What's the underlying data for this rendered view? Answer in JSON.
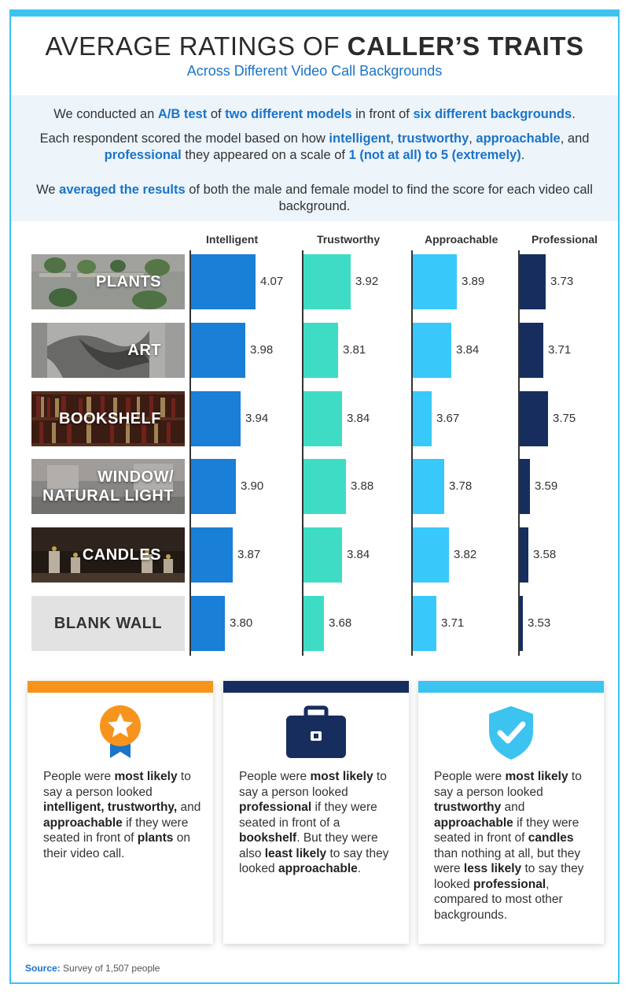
{
  "title": {
    "prefix": "AVERAGE RATINGS OF",
    "bold": "CALLER’S TRAITS"
  },
  "subtitle": "Across Different Video Call Backgrounds",
  "intro": {
    "p1": [
      {
        "t": "We conducted an ",
        "b": false
      },
      {
        "t": "A/B test",
        "b": true
      },
      {
        "t": " of ",
        "b": false
      },
      {
        "t": "two different models",
        "b": true
      },
      {
        "t": " in front of ",
        "b": false
      },
      {
        "t": "six different backgrounds",
        "b": true
      },
      {
        "t": ".",
        "b": false
      }
    ],
    "p2": [
      {
        "t": "Each respondent scored the model based on how ",
        "b": false
      },
      {
        "t": "intelligent",
        "b": true
      },
      {
        "t": ", ",
        "b": false
      },
      {
        "t": "trustworthy",
        "b": true
      },
      {
        "t": ", ",
        "b": false
      },
      {
        "t": "approachable",
        "b": true
      },
      {
        "t": ", and ",
        "b": false
      },
      {
        "t": "professional",
        "b": true
      },
      {
        "t": " they appeared on a scale of ",
        "b": false
      },
      {
        "t": "1 (not at all) to 5 (extremely)",
        "b": true
      },
      {
        "t": ".",
        "b": false
      }
    ],
    "p3": [
      {
        "t": "We ",
        "b": false
      },
      {
        "t": "averaged the results",
        "b": true
      },
      {
        "t": " of both the male and female model to find the score for each video call background.",
        "b": false
      }
    ]
  },
  "colors": {
    "frame": "#3cc3f0",
    "intelligent": "#1a7fd6",
    "trustworthy": "#3fdcc5",
    "approachable": "#38c9fa",
    "professional": "#162d5e",
    "card1": "#f7941d",
    "card2": "#162d5e",
    "card3": "#3cc3f0",
    "accent": "#1a74c9"
  },
  "chart_data": {
    "type": "bar",
    "orientation": "horizontal",
    "title": "AVERAGE RATINGS OF CALLER’S TRAITS",
    "subtitle": "Across Different Video Call Backgrounds",
    "categories": [
      "PLANTS",
      "ART",
      "BOOKSHELF",
      "WINDOW/ NATURAL LIGHT",
      "CANDLES",
      "BLANK WALL"
    ],
    "series": [
      {
        "name": "Intelligent",
        "values": [
          4.07,
          3.98,
          3.94,
          3.9,
          3.87,
          3.8
        ]
      },
      {
        "name": "Trustworthy",
        "values": [
          3.92,
          3.81,
          3.84,
          3.88,
          3.84,
          3.68
        ]
      },
      {
        "name": "Approachable",
        "values": [
          3.89,
          3.84,
          3.67,
          3.78,
          3.82,
          3.71
        ]
      },
      {
        "name": "Professional",
        "values": [
          3.73,
          3.71,
          3.75,
          3.59,
          3.58,
          3.53
        ]
      }
    ],
    "value_axis_min": 3.5,
    "scale": "1 (not at all) to 5 (extremely)",
    "data_labels": true
  },
  "rows": [
    {
      "label": "PLANTS",
      "lines": [
        "PLANTS"
      ]
    },
    {
      "label": "ART",
      "lines": [
        "ART"
      ]
    },
    {
      "label": "BOOKSHELF",
      "lines": [
        "BOOKSHELF"
      ]
    },
    {
      "label": "WINDOW/ NATURAL LIGHT",
      "lines": [
        "WINDOW/",
        "NATURAL LIGHT"
      ]
    },
    {
      "label": "CANDLES",
      "lines": [
        "CANDLES"
      ]
    },
    {
      "label": "BLANK WALL",
      "lines": [
        "BLANK WALL"
      ]
    }
  ],
  "cards": [
    {
      "icon": "award-ribbon-icon",
      "parts": [
        {
          "t": "People were ",
          "b": false
        },
        {
          "t": "most likely",
          "b": true
        },
        {
          "t": " to say a person looked ",
          "b": false
        },
        {
          "t": "intelligent, trustworthy,",
          "b": true
        },
        {
          "t": " and ",
          "b": false
        },
        {
          "t": "approachable",
          "b": true
        },
        {
          "t": " if they were seated in front of ",
          "b": false
        },
        {
          "t": "plants",
          "b": true
        },
        {
          "t": " on their video call.",
          "b": false
        }
      ]
    },
    {
      "icon": "briefcase-icon",
      "parts": [
        {
          "t": "People were ",
          "b": false
        },
        {
          "t": "most likely",
          "b": true
        },
        {
          "t": " to say a person looked ",
          "b": false
        },
        {
          "t": "professional",
          "b": true
        },
        {
          "t": " if they were seated in front of a ",
          "b": false
        },
        {
          "t": "bookshelf",
          "b": true
        },
        {
          "t": ". But they were also ",
          "b": false
        },
        {
          "t": "least likely",
          "b": true
        },
        {
          "t": " to say they looked ",
          "b": false
        },
        {
          "t": "approachable",
          "b": true
        },
        {
          "t": ".",
          "b": false
        }
      ]
    },
    {
      "icon": "shield-check-icon",
      "parts": [
        {
          "t": "People were ",
          "b": false
        },
        {
          "t": "most likely",
          "b": true
        },
        {
          "t": " to say a person looked ",
          "b": false
        },
        {
          "t": "trustworthy",
          "b": true
        },
        {
          "t": " and ",
          "b": false
        },
        {
          "t": "approachable",
          "b": true
        },
        {
          "t": " if they were seated in front of ",
          "b": false
        },
        {
          "t": "candles",
          "b": true
        },
        {
          "t": " than nothing at all, but they were ",
          "b": false
        },
        {
          "t": "less likely",
          "b": true
        },
        {
          "t": " to say they looked ",
          "b": false
        },
        {
          "t": "professional",
          "b": true
        },
        {
          "t": ", compared to most other backgrounds.",
          "b": false
        }
      ]
    }
  ],
  "source": {
    "label": "Source:",
    "text": "Survey of 1,507 people"
  }
}
